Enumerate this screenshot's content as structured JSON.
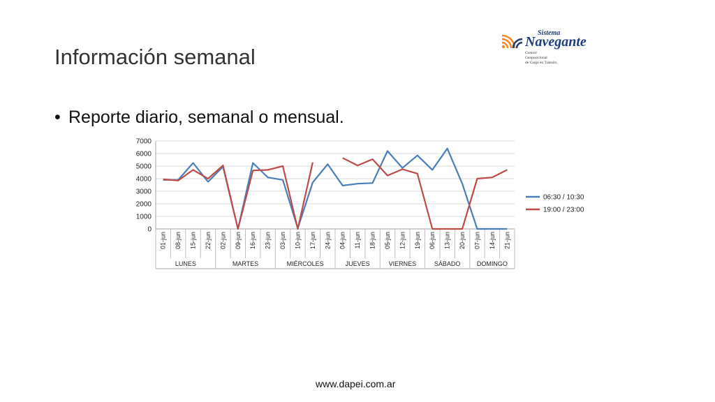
{
  "slide": {
    "title": "Información semanal",
    "bullets": [
      "Reporte diario, semanal o mensual."
    ],
    "footer": "www.dapei.com.ar"
  },
  "logo": {
    "line1": "Sistema",
    "line2": "Navegante",
    "sub1": "Control",
    "sub2": "Geoposicional",
    "sub3": "de Carga en Tránsito",
    "colors": {
      "orange": "#f08a24",
      "blue": "#1f3e7a"
    }
  },
  "chart_data": {
    "type": "line",
    "title": "",
    "xlabel": "",
    "ylabel": "",
    "ylim": [
      0,
      7000
    ],
    "yticks": [
      0,
      1000,
      2000,
      3000,
      4000,
      5000,
      6000,
      7000
    ],
    "grid": true,
    "legend_position": "right",
    "categories": [
      "01-jun",
      "08-jun",
      "15-jun",
      "22-jun",
      "02-jun",
      "09-jun",
      "16-jun",
      "23-jun",
      "03-jun",
      "10-jun",
      "17-jun",
      "24-jun",
      "04-jun",
      "11-jun",
      "18-jun",
      "05-jun",
      "12-jun",
      "19-jun",
      "06-jun",
      "13-jun",
      "20-jun",
      "07-jun",
      "14-jun",
      "21-jun"
    ],
    "groups": [
      {
        "label": "LUNES",
        "count": 4
      },
      {
        "label": "MARTES",
        "count": 4
      },
      {
        "label": "MIÉRCOLES",
        "count": 4
      },
      {
        "label": "JUEVES",
        "count": 3
      },
      {
        "label": "VIERNES",
        "count": 3
      },
      {
        "label": "SÁBADO",
        "count": 3
      },
      {
        "label": "DOMINGO",
        "count": 3
      }
    ],
    "series": [
      {
        "name": "06:30 / 10:30",
        "color": "#4a7ebb",
        "values": [
          3900,
          3900,
          5250,
          3750,
          4950,
          0,
          5250,
          4100,
          3900,
          50,
          3700,
          5150,
          3450,
          3600,
          3650,
          6200,
          4850,
          5850,
          4700,
          6400,
          3600,
          0,
          0,
          0
        ]
      },
      {
        "name": "19:00 / 23:00",
        "color": "#be4b48",
        "values": [
          3950,
          3850,
          4700,
          4000,
          5050,
          0,
          4650,
          4700,
          5000,
          0,
          5300,
          null,
          5650,
          5050,
          5550,
          4250,
          4750,
          4400,
          0,
          0,
          0,
          4000,
          4100,
          4700
        ]
      }
    ]
  }
}
